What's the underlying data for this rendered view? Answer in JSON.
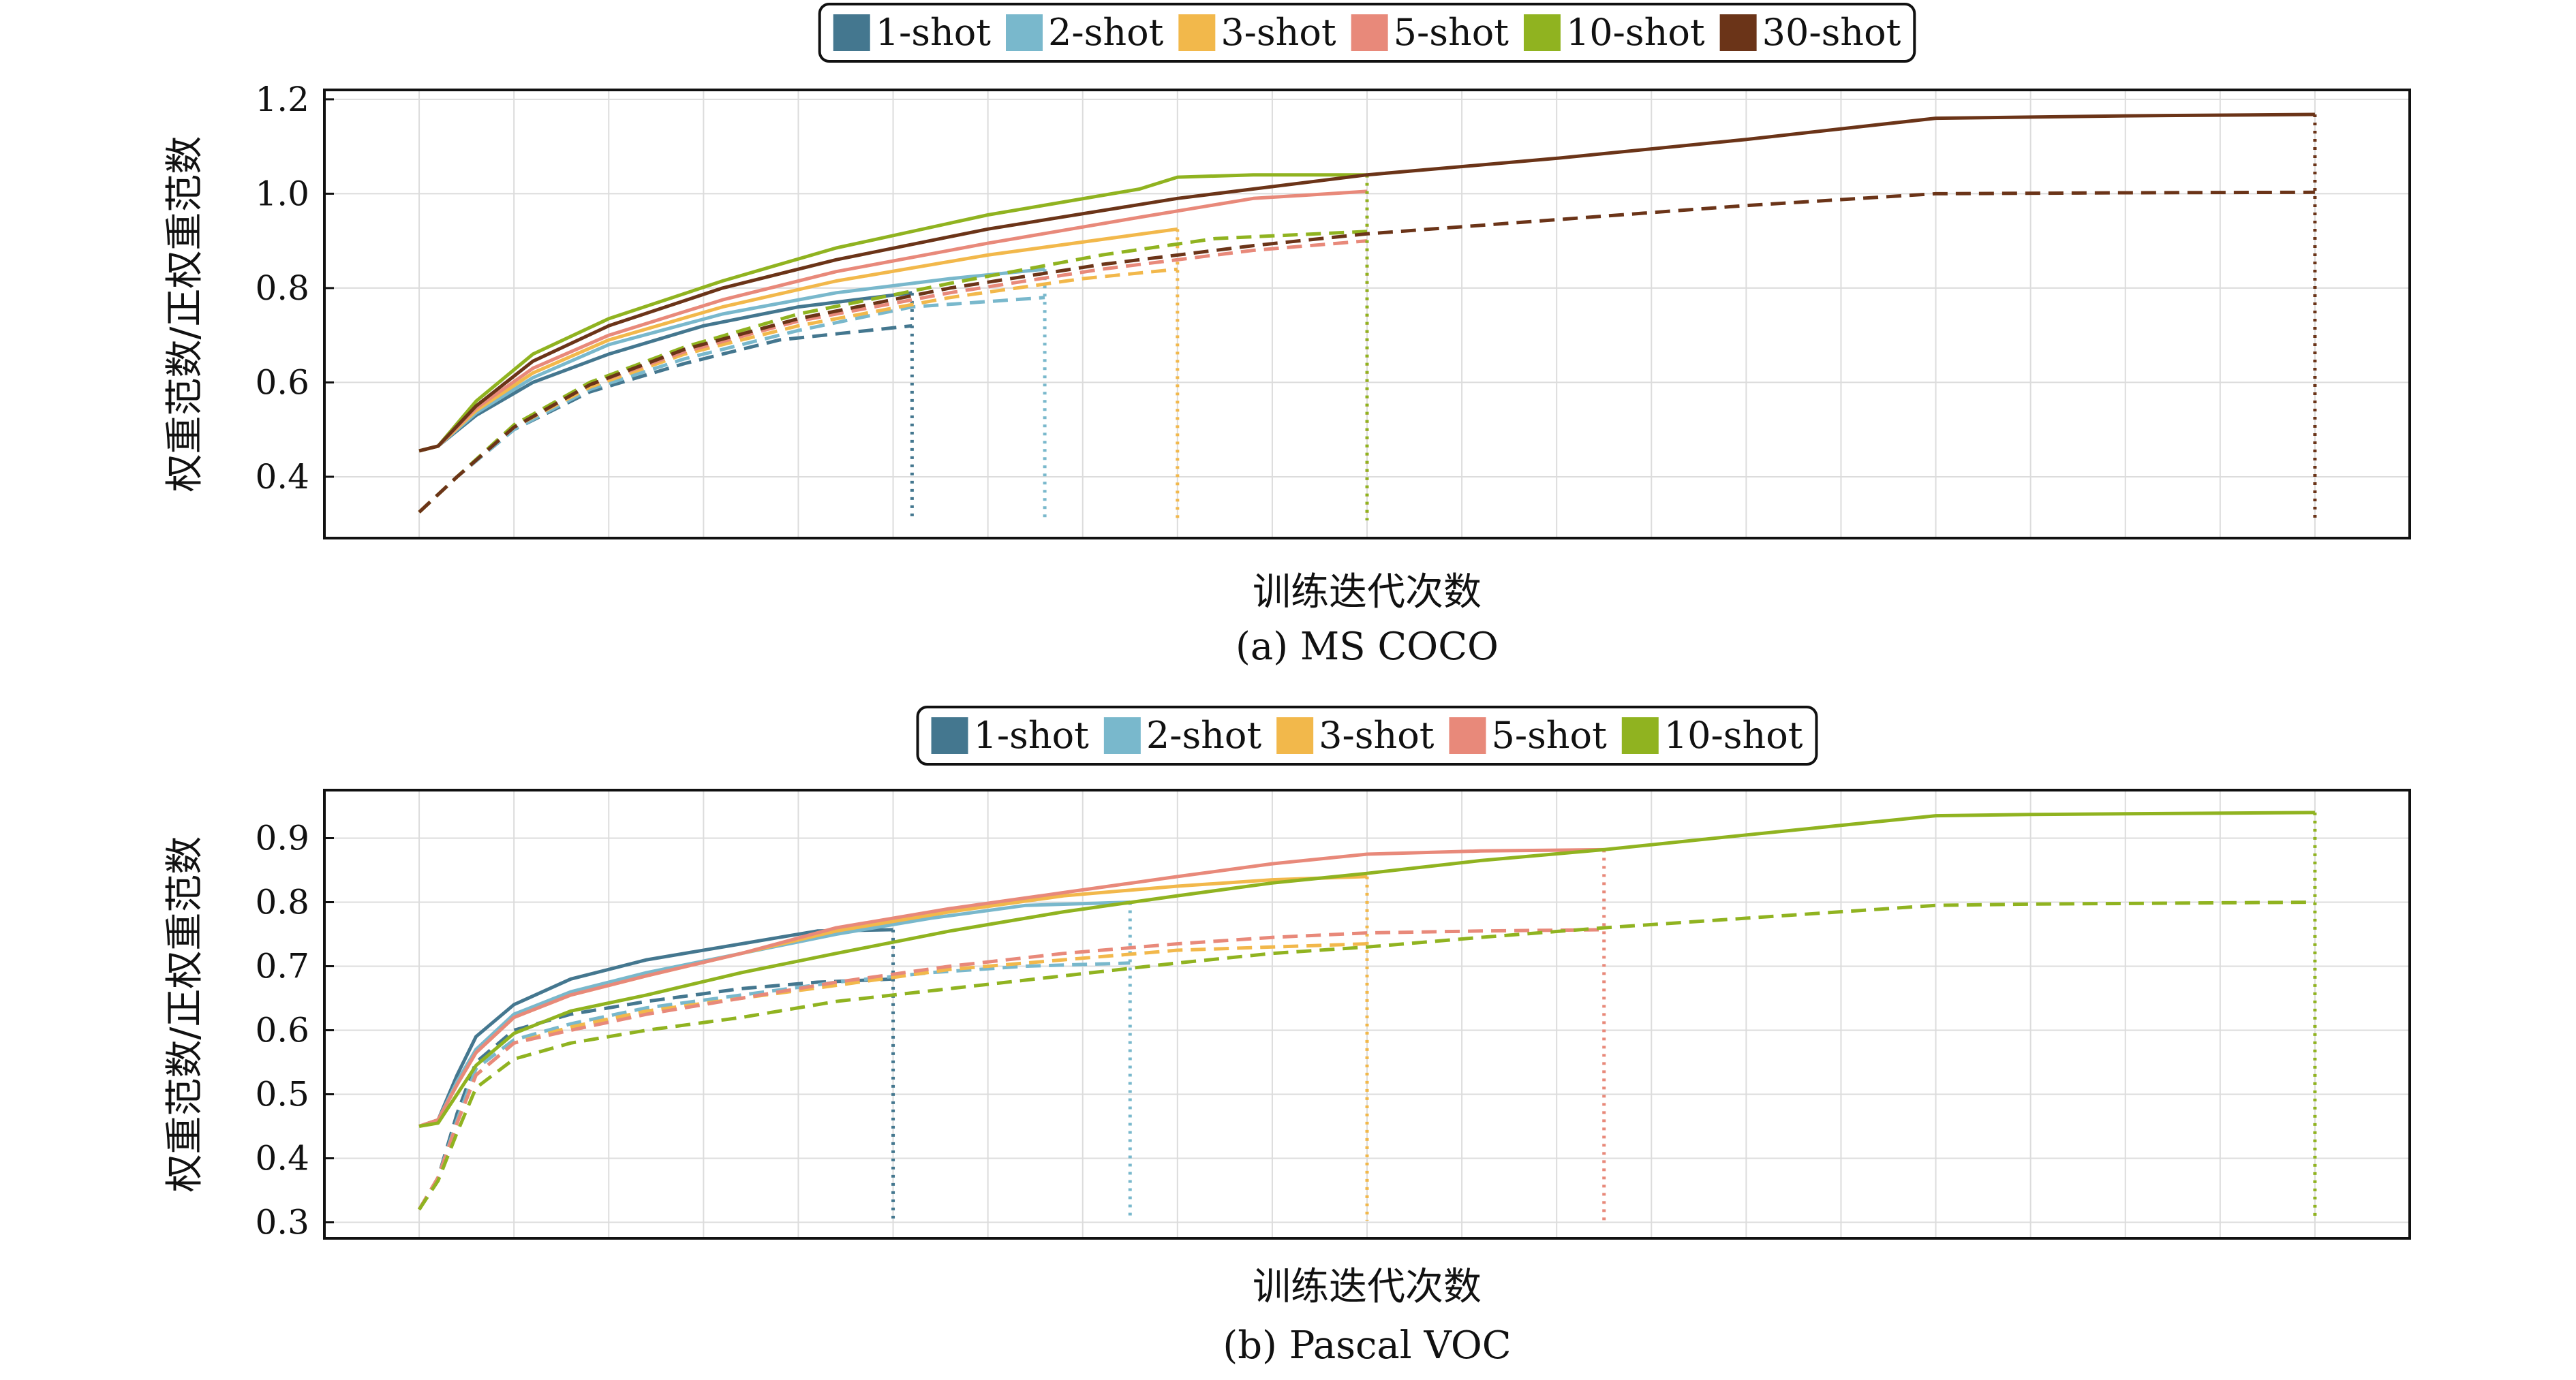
{
  "chart_data": [
    {
      "type": "line",
      "xlabel": "训练迭代次数",
      "ylabel": "权重范数/正权重范数",
      "caption": "(a) MS COCO",
      "yticks": [
        0.4,
        0.6,
        0.8,
        1.0,
        1.2
      ],
      "ytick_labels": [
        "0.4",
        "0.6",
        "0.8",
        "1.0",
        "1.2"
      ],
      "ylim": [
        0.27,
        1.22
      ],
      "xlim": [
        -5,
        105
      ],
      "grid": true,
      "legend_placement": "top-center",
      "series": [
        {
          "name": "1-shot",
          "color": "#44778f",
          "end": 26,
          "solid": {
            "x": [
              0,
              1,
              3,
              6,
              10,
              15,
              20,
              26
            ],
            "y": [
              0.455,
              0.465,
              0.53,
              0.6,
              0.66,
              0.72,
              0.76,
              0.79
            ]
          },
          "dashed": {
            "x": [
              0,
              2,
              5,
              9,
              14,
              19,
              26
            ],
            "y": [
              0.325,
              0.4,
              0.5,
              0.58,
              0.64,
              0.69,
              0.72
            ]
          }
        },
        {
          "name": "2-shot",
          "color": "#79b8cc",
          "end": 33,
          "solid": {
            "x": [
              0,
              1,
              3,
              6,
              10,
              16,
              22,
              28,
              33
            ],
            "y": [
              0.455,
              0.465,
              0.535,
              0.61,
              0.68,
              0.745,
              0.79,
              0.82,
              0.84
            ]
          },
          "dashed": {
            "x": [
              0,
              2,
              5,
              9,
              14,
              20,
              26,
              33
            ],
            "y": [
              0.325,
              0.4,
              0.5,
              0.585,
              0.65,
              0.71,
              0.76,
              0.78
            ]
          }
        },
        {
          "name": "3-shot",
          "color": "#f2b84b",
          "end": 40,
          "solid": {
            "x": [
              0,
              1,
              3,
              6,
              10,
              16,
              22,
              30,
              40
            ],
            "y": [
              0.455,
              0.465,
              0.54,
              0.62,
              0.69,
              0.76,
              0.815,
              0.87,
              0.925
            ]
          },
          "dashed": {
            "x": [
              0,
              2,
              5,
              9,
              14,
              20,
              28,
              35,
              40
            ],
            "y": [
              0.325,
              0.4,
              0.505,
              0.59,
              0.66,
              0.72,
              0.78,
              0.82,
              0.84
            ]
          }
        },
        {
          "name": "5-shot",
          "color": "#e8897a",
          "end": 50,
          "solid": {
            "x": [
              0,
              1,
              3,
              6,
              10,
              16,
              22,
              30,
              38,
              44,
              50
            ],
            "y": [
              0.455,
              0.465,
              0.545,
              0.63,
              0.7,
              0.775,
              0.835,
              0.895,
              0.95,
              0.99,
              1.005
            ]
          },
          "dashed": {
            "x": [
              0,
              2,
              5,
              9,
              14,
              20,
              28,
              36,
              44,
              50
            ],
            "y": [
              0.325,
              0.4,
              0.505,
              0.595,
              0.665,
              0.73,
              0.79,
              0.84,
              0.88,
              0.9
            ]
          }
        },
        {
          "name": "10-shot",
          "color": "#90b320",
          "end": 50,
          "solid": {
            "x": [
              0,
              1,
              3,
              6,
              10,
              16,
              22,
              30,
              38,
              40,
              44,
              50
            ],
            "y": [
              0.455,
              0.465,
              0.56,
              0.66,
              0.735,
              0.815,
              0.885,
              0.955,
              1.01,
              1.035,
              1.04,
              1.04
            ]
          },
          "dashed": {
            "x": [
              0,
              2,
              5,
              9,
              14,
              20,
              28,
              36,
              42,
              50
            ],
            "y": [
              0.325,
              0.4,
              0.51,
              0.6,
              0.675,
              0.745,
              0.81,
              0.87,
              0.905,
              0.92
            ]
          }
        },
        {
          "name": "30-shot",
          "color": "#6b3418",
          "end": 100,
          "solid": {
            "x": [
              0,
              1,
              3,
              6,
              10,
              16,
              22,
              30,
              40,
              50,
              60,
              70,
              80,
              90,
              100
            ],
            "y": [
              0.455,
              0.465,
              0.55,
              0.645,
              0.72,
              0.8,
              0.86,
              0.925,
              0.99,
              1.04,
              1.075,
              1.115,
              1.16,
              1.165,
              1.168
            ]
          },
          "dashed": {
            "x": [
              0,
              2,
              5,
              9,
              14,
              20,
              28,
              36,
              44,
              50,
              60,
              70,
              80,
              90,
              100
            ],
            "y": [
              0.325,
              0.4,
              0.505,
              0.595,
              0.67,
              0.735,
              0.8,
              0.85,
              0.89,
              0.915,
              0.945,
              0.975,
              1.0,
              1.002,
              1.003
            ]
          }
        }
      ]
    },
    {
      "type": "line",
      "xlabel": "训练迭代次数",
      "ylabel": "权重范数/正权重范数",
      "caption": "(b) Pascal VOC",
      "yticks": [
        0.3,
        0.4,
        0.5,
        0.6,
        0.7,
        0.8,
        0.9
      ],
      "ytick_labels": [
        "0.3",
        "0.4",
        "0.5",
        "0.6",
        "0.7",
        "0.8",
        "0.9"
      ],
      "ylim": [
        0.275,
        0.975
      ],
      "xlim": [
        -5,
        105
      ],
      "grid": true,
      "legend_placement": "top-center",
      "series": [
        {
          "name": "1-shot",
          "color": "#44778f",
          "end": 25,
          "solid": {
            "x": [
              0,
              1,
              2,
              3,
              5,
              8,
              12,
              17,
              21,
              25
            ],
            "y": [
              0.45,
              0.46,
              0.53,
              0.59,
              0.64,
              0.68,
              0.71,
              0.735,
              0.755,
              0.757
            ]
          },
          "dashed": {
            "x": [
              0,
              1,
              2,
              3,
              5,
              8,
              12,
              17,
              21,
              25
            ],
            "y": [
              0.32,
              0.37,
              0.47,
              0.55,
              0.6,
              0.625,
              0.645,
              0.665,
              0.675,
              0.68
            ]
          }
        },
        {
          "name": "2-shot",
          "color": "#79b8cc",
          "end": 37.5,
          "solid": {
            "x": [
              0,
              1,
              2,
              3,
              5,
              8,
              12,
              17,
              22,
              27,
              32,
              37.5
            ],
            "y": [
              0.45,
              0.46,
              0.52,
              0.57,
              0.625,
              0.66,
              0.69,
              0.72,
              0.75,
              0.775,
              0.795,
              0.8
            ]
          },
          "dashed": {
            "x": [
              0,
              1,
              2,
              3,
              5,
              8,
              12,
              17,
              22,
              27,
              32,
              37.5
            ],
            "y": [
              0.32,
              0.37,
              0.46,
              0.54,
              0.585,
              0.61,
              0.635,
              0.655,
              0.675,
              0.69,
              0.7,
              0.705
            ]
          }
        },
        {
          "name": "3-shot",
          "color": "#f2b84b",
          "end": 50,
          "solid": {
            "x": [
              0,
              1,
              2,
              3,
              5,
              8,
              12,
              17,
              22,
              28,
              34,
              40,
              45,
              50
            ],
            "y": [
              0.45,
              0.46,
              0.515,
              0.565,
              0.62,
              0.655,
              0.685,
              0.72,
              0.755,
              0.785,
              0.81,
              0.825,
              0.835,
              0.84
            ]
          },
          "dashed": {
            "x": [
              0,
              1,
              2,
              3,
              5,
              8,
              12,
              17,
              22,
              28,
              34,
              40,
              45,
              50
            ],
            "y": [
              0.32,
              0.37,
              0.455,
              0.53,
              0.58,
              0.605,
              0.63,
              0.65,
              0.67,
              0.695,
              0.71,
              0.725,
              0.73,
              0.735
            ]
          }
        },
        {
          "name": "5-shot",
          "color": "#e8897a",
          "end": 62.5,
          "solid": {
            "x": [
              0,
              1,
              2,
              3,
              5,
              8,
              12,
              17,
              22,
              28,
              34,
              40,
              45,
              50,
              56,
              62.5
            ],
            "y": [
              0.45,
              0.46,
              0.515,
              0.565,
              0.62,
              0.655,
              0.685,
              0.72,
              0.76,
              0.79,
              0.815,
              0.84,
              0.86,
              0.875,
              0.88,
              0.882
            ]
          },
          "dashed": {
            "x": [
              0,
              1,
              2,
              3,
              5,
              8,
              12,
              17,
              22,
              28,
              34,
              40,
              45,
              50,
              56,
              62.5
            ],
            "y": [
              0.32,
              0.37,
              0.455,
              0.53,
              0.58,
              0.6,
              0.625,
              0.65,
              0.675,
              0.7,
              0.72,
              0.735,
              0.745,
              0.752,
              0.755,
              0.757
            ]
          }
        },
        {
          "name": "10-shot",
          "color": "#90b320",
          "end": 100,
          "solid": {
            "x": [
              0,
              1,
              2,
              3,
              5,
              8,
              12,
              17,
              22,
              28,
              34,
              40,
              45,
              50,
              56,
              62.5,
              70,
              80,
              85,
              90,
              100
            ],
            "y": [
              0.45,
              0.455,
              0.5,
              0.545,
              0.595,
              0.63,
              0.655,
              0.69,
              0.72,
              0.755,
              0.785,
              0.81,
              0.83,
              0.845,
              0.865,
              0.882,
              0.905,
              0.935,
              0.937,
              0.938,
              0.94
            ]
          },
          "dashed": {
            "x": [
              0,
              1,
              2,
              3,
              5,
              8,
              12,
              17,
              22,
              28,
              34,
              40,
              45,
              50,
              56,
              62.5,
              70,
              80,
              85,
              90,
              100
            ],
            "y": [
              0.32,
              0.365,
              0.44,
              0.51,
              0.555,
              0.58,
              0.6,
              0.62,
              0.645,
              0.665,
              0.685,
              0.705,
              0.72,
              0.73,
              0.745,
              0.76,
              0.775,
              0.795,
              0.797,
              0.798,
              0.8
            ]
          }
        }
      ]
    }
  ]
}
